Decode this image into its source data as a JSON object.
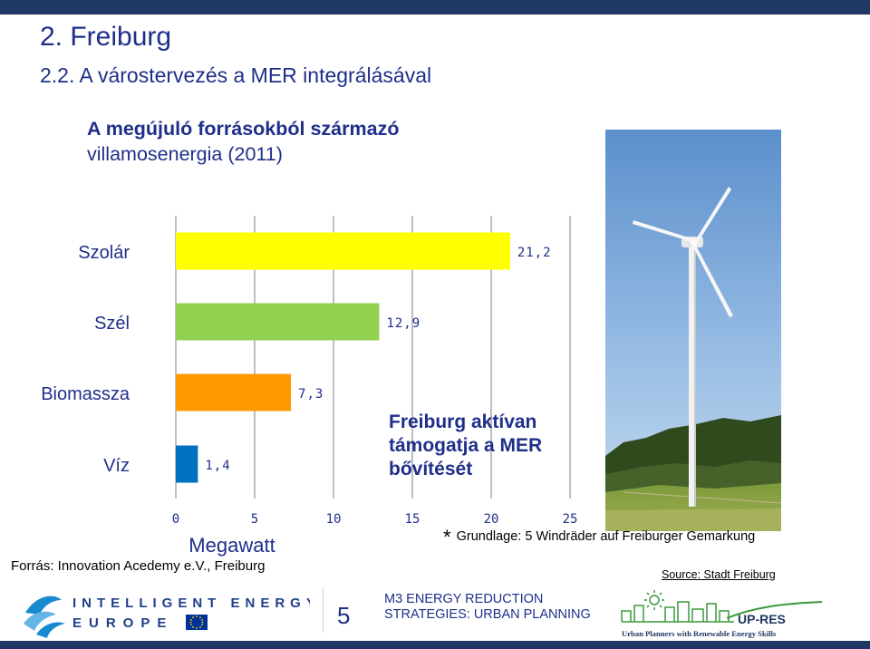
{
  "slide": {
    "title": "2. Freiburg",
    "subtitle": "2.2. A várostervezés a MER integrálásával"
  },
  "chart_heading": {
    "line1": "A megújuló forrásokból származó",
    "line2": "villamosenergia (2011)"
  },
  "chart_data": {
    "type": "bar",
    "orientation": "horizontal",
    "categories": [
      "Szolár",
      "Szél",
      "Biomassza",
      "Víz"
    ],
    "values": [
      21.2,
      12.9,
      7.3,
      1.4
    ],
    "value_labels": [
      "21,2",
      "12,9",
      "7,3",
      "1,4"
    ],
    "colors": [
      "#ffff00",
      "#92d050",
      "#ff9900",
      "#0070c0"
    ],
    "xlabel": "Megawatt",
    "xlim": [
      0,
      25
    ],
    "xticks": [
      "0",
      "5",
      "10",
      "15",
      "20",
      "25"
    ],
    "grid": true,
    "annotation": [
      "Freiburg  aktívan",
      "támogatja a MER",
      "bővítését"
    ]
  },
  "reference": "Forrás:  Innovation Acedemy e.V., Freiburg",
  "note": {
    "star": "*",
    "text": "Grundlage: 5 Windräder auf Freiburger Gemarkung"
  },
  "source": "Source: Stadt Freiburg",
  "footer": {
    "logo_left_line1": "INTELLIGENT ENERGY",
    "logo_left_line2": "EUROPE",
    "page_number": "5",
    "line1": "M3 ENERGY REDUCTION",
    "line2": "STRATEGIES: URBAN PLANNING",
    "logo_right_name": "UP-RES",
    "logo_right_tagline": "Urban Planners with Renewable Energy Skills"
  },
  "colors": {
    "title": "#1f2f8a",
    "bars_dark": "#1f3864"
  }
}
